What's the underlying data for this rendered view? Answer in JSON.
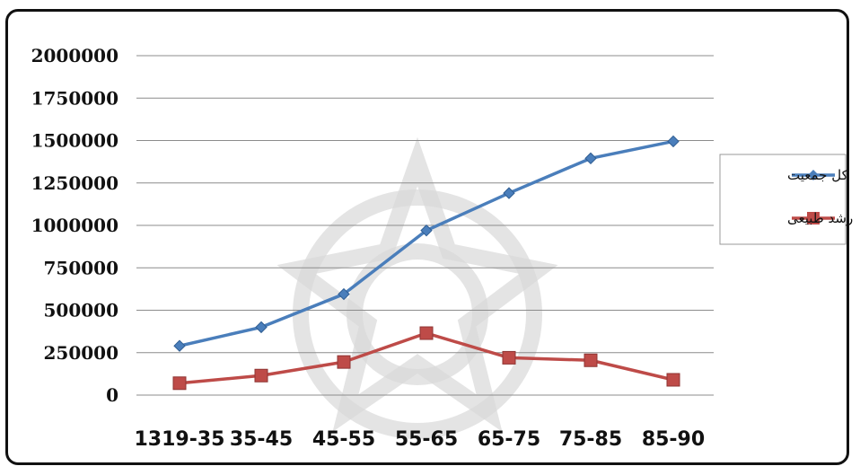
{
  "chart_data": {
    "type": "line",
    "title": "",
    "xlabel": "",
    "ylabel": "",
    "categories": [
      "1319-35",
      "35-45",
      "45-55",
      "55-65",
      "65-75",
      "75-85",
      "85-90"
    ],
    "ylim": [
      0,
      2000000
    ],
    "yticks": [
      "0",
      "250000",
      "500000",
      "750000",
      "1000000",
      "1250000",
      "1500000",
      "1750000",
      "2000000"
    ],
    "grid": true,
    "legend_position": "right",
    "series": [
      {
        "name": "کل جمعیت",
        "color": "#4a7ebb",
        "marker": "diamond",
        "values": [
          290000,
          400000,
          595000,
          970000,
          1190000,
          1395000,
          1495000
        ]
      },
      {
        "name": "رشد طبیعی",
        "color": "#be4b48",
        "marker": "square",
        "values": [
          70000,
          115000,
          195000,
          365000,
          220000,
          205000,
          90000
        ]
      }
    ]
  }
}
